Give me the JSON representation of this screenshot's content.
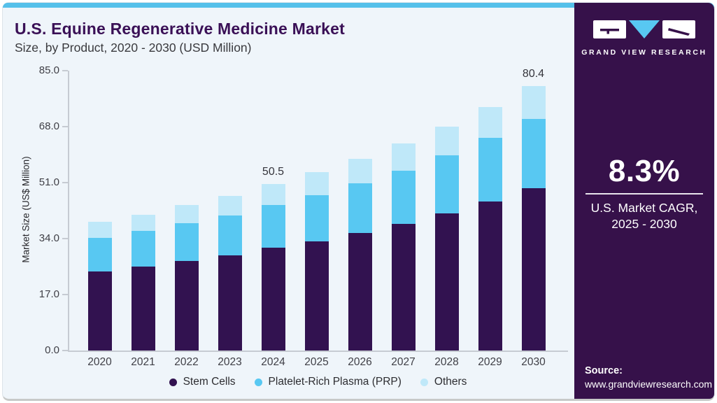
{
  "header": {
    "title": "U.S. Equine Regenerative Medicine Market",
    "subtitle": "Size, by Product, 2020 - 2030 (USD Million)"
  },
  "chart_data": {
    "type": "bar",
    "stacked": true,
    "title": "U.S. Equine Regenerative Medicine Market Size, by Product, 2020 - 2030 (USD Million)",
    "xlabel": "",
    "ylabel": "Market Size (US$ Million)",
    "ylim": [
      0,
      85
    ],
    "yticks": [
      85.0,
      68.0,
      51.0,
      34.0,
      17.0,
      0.0
    ],
    "ytick_labels": [
      "85.0",
      "68.0",
      "51.0",
      "34.0",
      "17.0",
      "0.0"
    ],
    "grid": false,
    "legend_position": "bottom",
    "categories": [
      "2020",
      "2021",
      "2022",
      "2023",
      "2024",
      "2025",
      "2026",
      "2027",
      "2028",
      "2029",
      "2030"
    ],
    "series": [
      {
        "name": "Stem Cells",
        "color": "#321250",
        "values": [
          24.0,
          25.4,
          27.1,
          28.9,
          31.2,
          33.1,
          35.7,
          38.4,
          41.6,
          45.2,
          49.4
        ]
      },
      {
        "name": "Platelet-Rich Plasma (PRP)",
        "color": "#58c8f2",
        "values": [
          10.2,
          10.9,
          11.5,
          12.2,
          13.1,
          14.1,
          15.1,
          16.3,
          17.7,
          19.3,
          21.0
        ]
      },
      {
        "name": "Others",
        "color": "#bfe8f9",
        "values": [
          4.8,
          5.0,
          5.5,
          5.9,
          6.2,
          6.9,
          7.4,
          8.1,
          8.8,
          9.5,
          10.0
        ]
      }
    ],
    "totals": [
      39.0,
      41.3,
      44.1,
      47.0,
      50.5,
      54.1,
      58.2,
      62.8,
      68.1,
      74.0,
      80.4
    ],
    "annotations": [
      {
        "category": "2024",
        "label": "50.5"
      },
      {
        "category": "2030",
        "label": "80.4"
      }
    ]
  },
  "sidebar": {
    "logo_name": "GRAND VIEW RESEARCH",
    "cagr_value": "8.3%",
    "cagr_line1": "U.S. Market CAGR,",
    "cagr_line2": "2025 - 2030",
    "source_label": "Source:",
    "source_url": "www.grandviewresearch.com"
  },
  "colors": {
    "card_background": "#eff5fa",
    "top_strip": "#55c0ea",
    "sidebar_background": "#36114a",
    "title_text": "#3a1056",
    "axis_line": "#c6cbd2",
    "stem_cells": "#321250",
    "prp": "#58c8f2",
    "others": "#bfe8f9"
  }
}
